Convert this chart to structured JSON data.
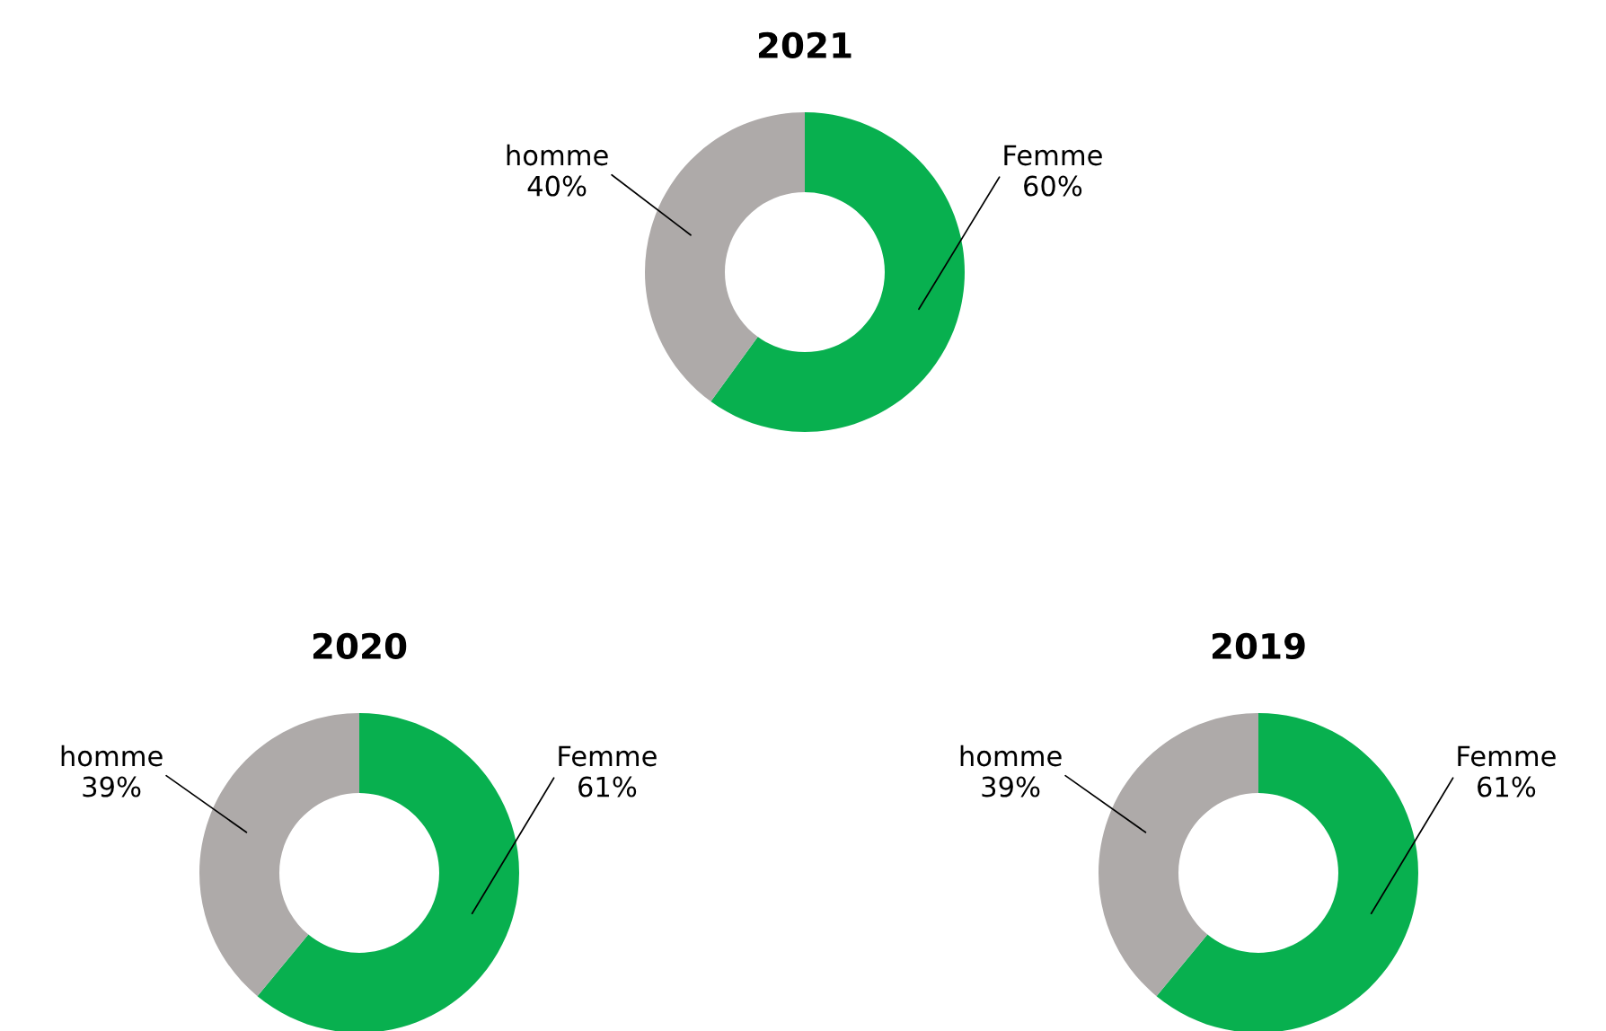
{
  "chart_data": [
    {
      "type": "donut",
      "title": "2021",
      "categories": [
        "Femme",
        "homme"
      ],
      "values": [
        60,
        40
      ],
      "colors": [
        "#08b04f",
        "#aeaaa9"
      ],
      "value_labels": [
        "60%",
        "40%"
      ]
    },
    {
      "type": "donut",
      "title": "2020",
      "categories": [
        "Femme",
        "homme"
      ],
      "values": [
        61,
        39
      ],
      "colors": [
        "#08b04f",
        "#aeaaa9"
      ],
      "value_labels": [
        "61%",
        "39%"
      ]
    },
    {
      "type": "donut",
      "title": "2019",
      "categories": [
        "Femme",
        "homme"
      ],
      "values": [
        61,
        39
      ],
      "colors": [
        "#08b04f",
        "#aeaaa9"
      ],
      "value_labels": [
        "61%",
        "39%"
      ]
    }
  ]
}
